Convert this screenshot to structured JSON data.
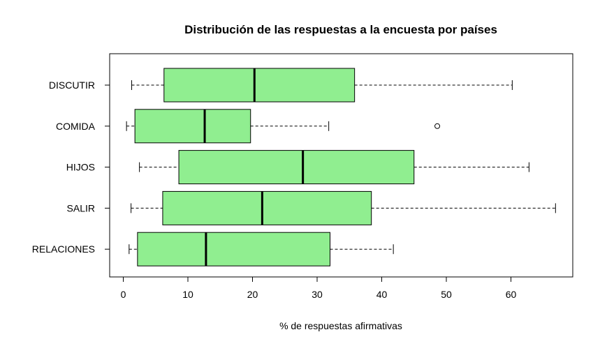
{
  "chart_data": {
    "type": "boxplot",
    "title": "Distribución de las respuestas a la encuesta por países",
    "xlabel": "% de respuestas afirmativas",
    "ylabel": "",
    "xlim": [
      0,
      70
    ],
    "xticks": [
      0,
      10,
      20,
      30,
      40,
      50,
      60
    ],
    "orientation": "horizontal",
    "categories": [
      "DISCUTIR",
      "COMIDA",
      "HIJOS",
      "SALIR",
      "RELACIONES"
    ],
    "boxes": [
      {
        "name": "DISCUTIR",
        "min": 1.3,
        "q1": 6.3,
        "median": 20.3,
        "q3": 35.8,
        "max": 60.2,
        "outliers": []
      },
      {
        "name": "COMIDA",
        "min": 0.5,
        "q1": 1.8,
        "median": 12.6,
        "q3": 19.7,
        "max": 31.8,
        "outliers": [
          48.6
        ]
      },
      {
        "name": "HIJOS",
        "min": 2.5,
        "q1": 8.6,
        "median": 27.8,
        "q3": 45.0,
        "max": 62.8,
        "outliers": []
      },
      {
        "name": "SALIR",
        "min": 1.2,
        "q1": 6.1,
        "median": 21.5,
        "q3": 38.4,
        "max": 66.9,
        "outliers": []
      },
      {
        "name": "RELACIONES",
        "min": 0.9,
        "q1": 2.2,
        "median": 12.8,
        "q3": 32.0,
        "max": 41.8,
        "outliers": []
      }
    ],
    "fill_color": "#90ee90",
    "grid": false
  }
}
